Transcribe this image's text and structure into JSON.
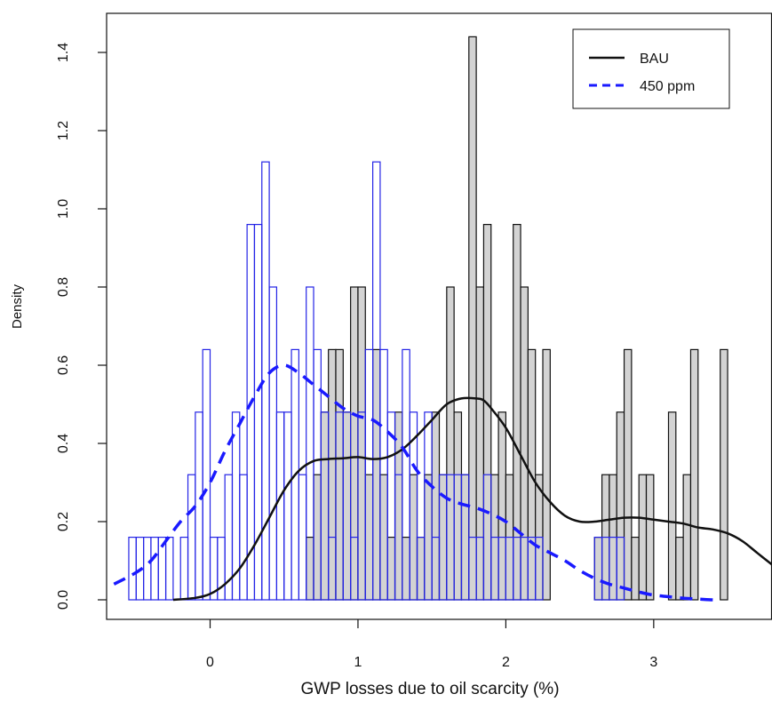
{
  "chart_data": {
    "type": "histogram",
    "xlabel": "GWP losses due to oil scarcity (%)",
    "ylabel": "Density",
    "xlim": [
      -0.7,
      3.8
    ],
    "ylim": [
      -0.05,
      1.5
    ],
    "x_ticks": [
      "0",
      "1",
      "2",
      "3"
    ],
    "y_ticks": [
      "0.0",
      "0.2",
      "0.4",
      "0.6",
      "0.8",
      "1.0",
      "1.2",
      "1.4"
    ],
    "bin_width": 0.05,
    "legend": {
      "position": "top-right",
      "entries": [
        {
          "label": "BAU",
          "style": "solid",
          "color": "#111111"
        },
        {
          "label": "450 ppm",
          "style": "dashed",
          "color": "#1a1aff"
        }
      ]
    },
    "series": [
      {
        "name": "BAU",
        "kind": "histogram",
        "fill": "#d3d3d3",
        "stroke": "#111111",
        "bin_starts": [
          0.65,
          0.7,
          0.75,
          0.8,
          0.85,
          0.9,
          0.95,
          1.0,
          1.05,
          1.1,
          1.15,
          1.2,
          1.25,
          1.3,
          1.35,
          1.4,
          1.45,
          1.5,
          1.55,
          1.6,
          1.65,
          1.7,
          1.75,
          1.8,
          1.85,
          1.9,
          1.95,
          2.0,
          2.05,
          2.1,
          2.15,
          2.2,
          2.25,
          2.3,
          2.35,
          2.4,
          2.45,
          2.5,
          2.55,
          2.6,
          2.65,
          2.7,
          2.75,
          2.8,
          2.85,
          2.9,
          2.95,
          3.0,
          3.05,
          3.1,
          3.15,
          3.2,
          3.25,
          3.3,
          3.35,
          3.4,
          3.45,
          3.5,
          3.55,
          3.6,
          3.65
        ],
        "density": [
          0.16,
          0.32,
          0.48,
          0.64,
          0.64,
          0.48,
          0.8,
          0.8,
          0.32,
          0.64,
          0.32,
          0.16,
          0.48,
          0.16,
          0.32,
          0.16,
          0.32,
          0.48,
          0.32,
          0.8,
          0.48,
          0.32,
          1.44,
          0.8,
          0.96,
          0.32,
          0.48,
          0.32,
          0.96,
          0.8,
          0.64,
          0.32,
          0.64,
          0,
          0,
          0,
          0,
          0,
          0,
          0.16,
          0.32,
          0.32,
          0.48,
          0.64,
          0.16,
          0.32,
          0.32,
          0,
          0,
          0.48,
          0.16,
          0.32,
          0.64,
          0,
          0,
          0,
          0.64,
          0,
          0,
          0,
          0
        ]
      },
      {
        "name": "450 ppm",
        "kind": "histogram",
        "fill": "none",
        "stroke": "#2323e6",
        "bin_starts": [
          -0.55,
          -0.5,
          -0.45,
          -0.4,
          -0.35,
          -0.3,
          -0.25,
          -0.2,
          -0.15,
          -0.1,
          -0.05,
          0.0,
          0.05,
          0.1,
          0.15,
          0.2,
          0.25,
          0.3,
          0.35,
          0.4,
          0.45,
          0.5,
          0.55,
          0.6,
          0.65,
          0.7,
          0.75,
          0.8,
          0.85,
          0.9,
          0.95,
          1.0,
          1.05,
          1.1,
          1.15,
          1.2,
          1.25,
          1.3,
          1.35,
          1.4,
          1.45,
          1.5,
          1.55,
          1.6,
          1.65,
          1.7,
          1.75,
          1.8,
          1.85,
          1.9,
          1.95,
          2.0,
          2.05,
          2.1,
          2.15,
          2.2,
          2.25,
          2.3,
          2.35,
          2.4,
          2.45,
          2.5,
          2.55,
          2.6,
          2.65,
          2.7,
          2.75
        ],
        "density": [
          0.16,
          0.16,
          0.16,
          0.16,
          0.16,
          0.16,
          0,
          0.16,
          0.32,
          0.48,
          0.64,
          0.16,
          0.16,
          0.32,
          0.48,
          0.32,
          0.96,
          0.96,
          1.12,
          0.8,
          0.48,
          0.48,
          0.64,
          0.32,
          0.8,
          0.64,
          0.48,
          0.16,
          0.48,
          0.48,
          0.16,
          0.48,
          0.64,
          1.12,
          0.64,
          0.48,
          0.32,
          0.64,
          0.48,
          0.16,
          0.48,
          0.16,
          0.32,
          0.32,
          0.32,
          0.32,
          0.16,
          0.16,
          0.32,
          0.16,
          0.16,
          0.16,
          0.16,
          0.16,
          0.16,
          0.16,
          0,
          0,
          0,
          0,
          0,
          0,
          0,
          0.16,
          0.16,
          0.16,
          0.16
        ]
      },
      {
        "name": "BAU",
        "kind": "density",
        "style": "solid",
        "color": "#111111",
        "x": [
          -0.25,
          -0.1,
          0.0,
          0.1,
          0.2,
          0.3,
          0.4,
          0.5,
          0.6,
          0.7,
          0.8,
          0.9,
          1.0,
          1.1,
          1.2,
          1.3,
          1.4,
          1.5,
          1.6,
          1.7,
          1.8,
          1.85,
          1.9,
          2.0,
          2.1,
          2.2,
          2.3,
          2.4,
          2.5,
          2.6,
          2.7,
          2.8,
          2.9,
          3.0,
          3.1,
          3.2,
          3.3,
          3.4,
          3.5,
          3.6,
          3.7,
          3.8
        ],
        "y": [
          0.0,
          0.005,
          0.015,
          0.04,
          0.08,
          0.14,
          0.21,
          0.28,
          0.33,
          0.355,
          0.36,
          0.362,
          0.365,
          0.36,
          0.365,
          0.385,
          0.42,
          0.46,
          0.5,
          0.515,
          0.515,
          0.51,
          0.49,
          0.44,
          0.37,
          0.3,
          0.25,
          0.215,
          0.2,
          0.2,
          0.205,
          0.21,
          0.21,
          0.205,
          0.2,
          0.195,
          0.185,
          0.18,
          0.17,
          0.15,
          0.12,
          0.09
        ]
      },
      {
        "name": "450 ppm",
        "kind": "density",
        "style": "dashed",
        "color": "#1a1aff",
        "x": [
          -0.65,
          -0.5,
          -0.4,
          -0.3,
          -0.2,
          -0.1,
          0.0,
          0.1,
          0.2,
          0.3,
          0.4,
          0.5,
          0.6,
          0.7,
          0.8,
          0.9,
          1.0,
          1.1,
          1.2,
          1.3,
          1.4,
          1.5,
          1.6,
          1.7,
          1.8,
          1.9,
          2.0,
          2.1,
          2.2,
          2.3,
          2.4,
          2.5,
          2.6,
          2.7,
          2.8,
          2.9,
          3.0,
          3.1,
          3.2,
          3.3,
          3.4,
          3.45
        ],
        "y": [
          0.04,
          0.07,
          0.1,
          0.15,
          0.2,
          0.24,
          0.3,
          0.38,
          0.45,
          0.52,
          0.58,
          0.6,
          0.58,
          0.55,
          0.52,
          0.49,
          0.47,
          0.46,
          0.43,
          0.39,
          0.33,
          0.29,
          0.26,
          0.245,
          0.235,
          0.22,
          0.2,
          0.17,
          0.14,
          0.12,
          0.1,
          0.075,
          0.055,
          0.04,
          0.03,
          0.02,
          0.012,
          0.008,
          0.004,
          0.002,
          0.0,
          0.0
        ]
      }
    ]
  }
}
